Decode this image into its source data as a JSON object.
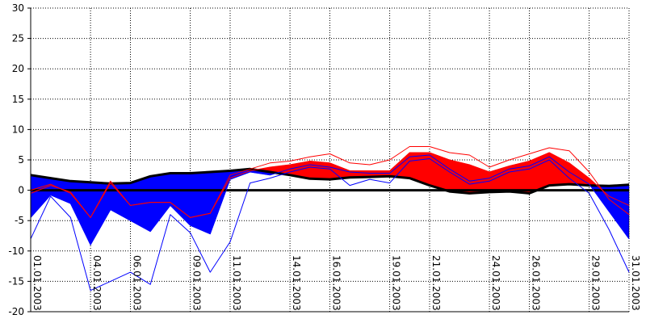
{
  "chart_data": {
    "type": "area",
    "title": "",
    "xlabel": "",
    "ylabel": "",
    "ylim": [
      -20,
      30
    ],
    "yticks": [
      -20,
      -15,
      -10,
      -5,
      0,
      5,
      10,
      15,
      20,
      25,
      30
    ],
    "grid": true,
    "x": [
      "01.01.2003",
      "02.01.2003",
      "03.01.2003",
      "04.01.2003",
      "05.01.2003",
      "06.01.2003",
      "07.01.2003",
      "08.01.2003",
      "09.01.2003",
      "10.01.2003",
      "11.01.2003",
      "12.01.2003",
      "13.01.2003",
      "14.01.2003",
      "15.01.2003",
      "16.01.2003",
      "17.01.2003",
      "18.01.2003",
      "19.01.2003",
      "20.01.2003",
      "21.01.2003",
      "22.01.2003",
      "23.01.2003",
      "24.01.2003",
      "25.01.2003",
      "26.01.2003",
      "27.01.2003",
      "28.01.2003",
      "29.01.2003",
      "30.01.2003",
      "31.01.2003"
    ],
    "xtick_labels": [
      "01.01.2003",
      "04.01.2003",
      "06.01.2003",
      "09.01.2003",
      "11.01.2003",
      "14.01.2003",
      "16.01.2003",
      "19.01.2003",
      "21.01.2003",
      "24.01.2003",
      "26.01.2003",
      "29.01.2003",
      "31.01.2003"
    ],
    "series": [
      {
        "color": "#000000",
        "values": [
          2.5,
          2.0,
          1.5,
          1.3,
          1.1,
          1.2,
          2.3,
          2.8,
          2.8,
          3.0,
          3.2,
          3.5,
          3.0,
          2.5,
          1.9,
          1.8,
          2.1,
          2.2,
          2.3,
          2.0,
          0.8,
          -0.2,
          -0.5,
          -0.3,
          -0.2,
          -0.5,
          0.8,
          1.0,
          0.8,
          0.7,
          0.9
        ]
      },
      {
        "color": "#000000",
        "values": [
          0,
          0,
          0,
          0,
          0,
          0,
          0,
          0,
          0,
          0,
          0,
          0,
          0,
          0,
          0,
          0,
          0,
          0,
          0,
          0,
          0,
          0,
          0,
          0,
          0,
          0,
          0,
          0,
          0,
          0,
          0
        ]
      },
      {
        "color": "#0000ff",
        "values": [
          -4.5,
          -0.8,
          -2.2,
          -9.0,
          -3.2,
          -5.0,
          -6.8,
          -2.5,
          -5.8,
          -7.2,
          1.8,
          3.0,
          2.5,
          3.5,
          4.2,
          3.8,
          3.0,
          2.8,
          2.8,
          5.5,
          5.8,
          3.5,
          1.5,
          2.0,
          3.5,
          4.0,
          5.5,
          3.0,
          1.0,
          -3.5,
          -8.0
        ]
      },
      {
        "color": "#ff0000",
        "values": [
          -0.5,
          0.8,
          -0.3,
          -4.5,
          1.5,
          -2.5,
          -2.0,
          -2.0,
          -4.5,
          -3.8,
          2.0,
          3.2,
          3.8,
          4.2,
          4.8,
          4.5,
          3.2,
          3.2,
          3.2,
          6.2,
          6.2,
          5.0,
          4.2,
          3.0,
          4.0,
          4.8,
          6.2,
          4.5,
          2.0,
          -1.0,
          -2.5
        ]
      },
      {
        "color": "#ff0000",
        "values": [
          0,
          1.0,
          -0.5,
          -4.5,
          1.2,
          -2.5,
          -2.0,
          -2.0,
          -4.5,
          -3.8,
          2.5,
          3.5,
          4.5,
          4.8,
          5.5,
          6.0,
          4.5,
          4.2,
          5.0,
          7.2,
          7.2,
          6.2,
          5.8,
          3.8,
          5.0,
          6.0,
          7.0,
          6.5,
          3.0,
          -1.5,
          -4.0
        ]
      },
      {
        "color": "#0000ff",
        "values": [
          -8.0,
          -1.0,
          -4.5,
          -16.5,
          -15.0,
          -13.5,
          -15.5,
          -4.0,
          -7.0,
          -13.5,
          -8.5,
          1.2,
          2.0,
          3.0,
          3.8,
          3.5,
          0.8,
          1.8,
          1.2,
          4.8,
          5.2,
          3.0,
          1.0,
          1.5,
          3.0,
          3.5,
          5.0,
          2.0,
          -0.5,
          -6.5,
          -13.5
        ]
      }
    ]
  }
}
